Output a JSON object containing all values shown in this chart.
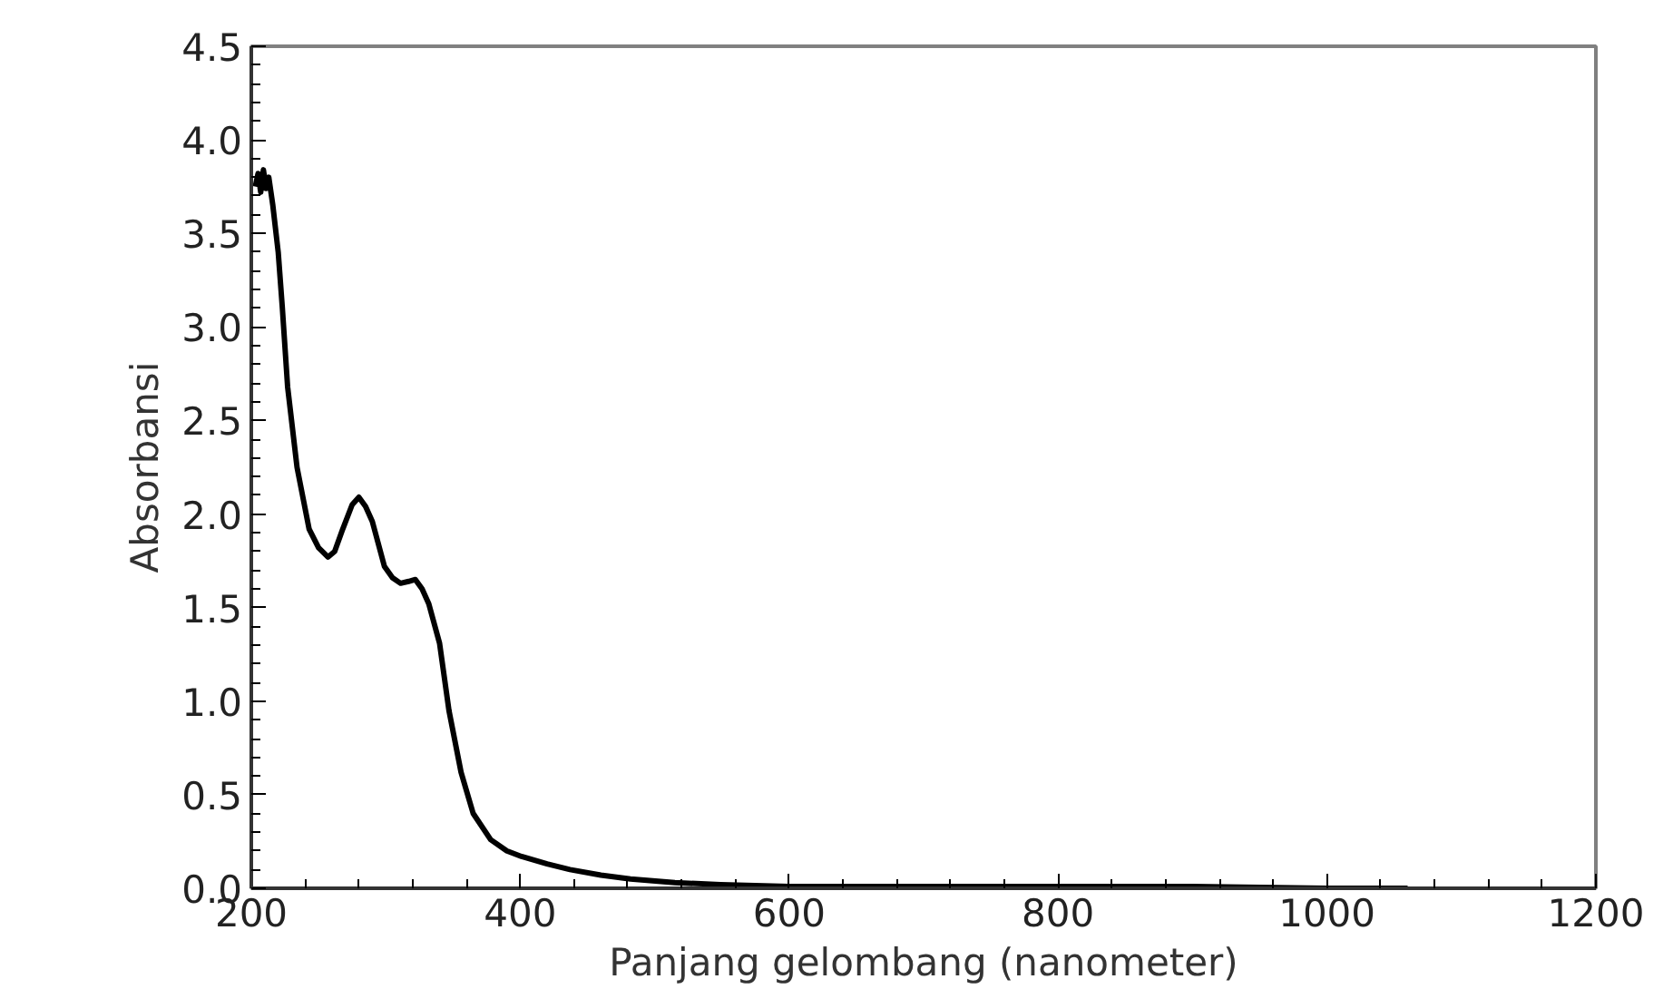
{
  "chart_data": {
    "type": "line",
    "xlabel": "Panjang gelombang (nanometer)",
    "ylabel": "Absorbansi",
    "xlim": [
      200,
      1200
    ],
    "ylim": [
      0,
      4.5
    ],
    "xticks": [
      200,
      400,
      600,
      800,
      1000,
      1200
    ],
    "yticks": [
      {
        "value": 0,
        "label": "0.0"
      },
      {
        "value": 0.5,
        "label": "0.5"
      },
      {
        "value": 1,
        "label": "1.0"
      },
      {
        "value": 1.5,
        "label": "1.5"
      },
      {
        "value": 2,
        "label": "2.0"
      },
      {
        "value": 2.5,
        "label": "2.5"
      },
      {
        "value": 3,
        "label": "3.0"
      },
      {
        "value": 3.5,
        "label": "3.5"
      },
      {
        "value": 4,
        "label": "4.0"
      },
      {
        "value": 4.5,
        "label": "4.5"
      }
    ],
    "grid": false,
    "marker": "none",
    "line_style": "solid",
    "series": [
      {
        "color": "#000000",
        "x": [
          203,
          205,
          207,
          209,
          211,
          213,
          216,
          220,
          223,
          227,
          234,
          243,
          250,
          257,
          262,
          268,
          275,
          280,
          285,
          290,
          299,
          305,
          311,
          317,
          322,
          327,
          332,
          340,
          347,
          356,
          365,
          378,
          390,
          401,
          420,
          437,
          460,
          482,
          515,
          549,
          600,
          700,
          800,
          900,
          1000,
          1060
        ],
        "values": [
          3.75,
          3.82,
          3.72,
          3.84,
          3.74,
          3.8,
          3.65,
          3.4,
          3.11,
          2.68,
          2.25,
          1.92,
          1.82,
          1.77,
          1.8,
          1.92,
          2.05,
          2.09,
          2.04,
          1.96,
          1.72,
          1.66,
          1.63,
          1.64,
          1.65,
          1.6,
          1.52,
          1.31,
          0.95,
          0.62,
          0.4,
          0.26,
          0.2,
          0.17,
          0.13,
          0.1,
          0.07,
          0.05,
          0.03,
          0.02,
          0.01,
          0.01,
          0.01,
          0.01,
          0,
          0
        ]
      }
    ]
  }
}
